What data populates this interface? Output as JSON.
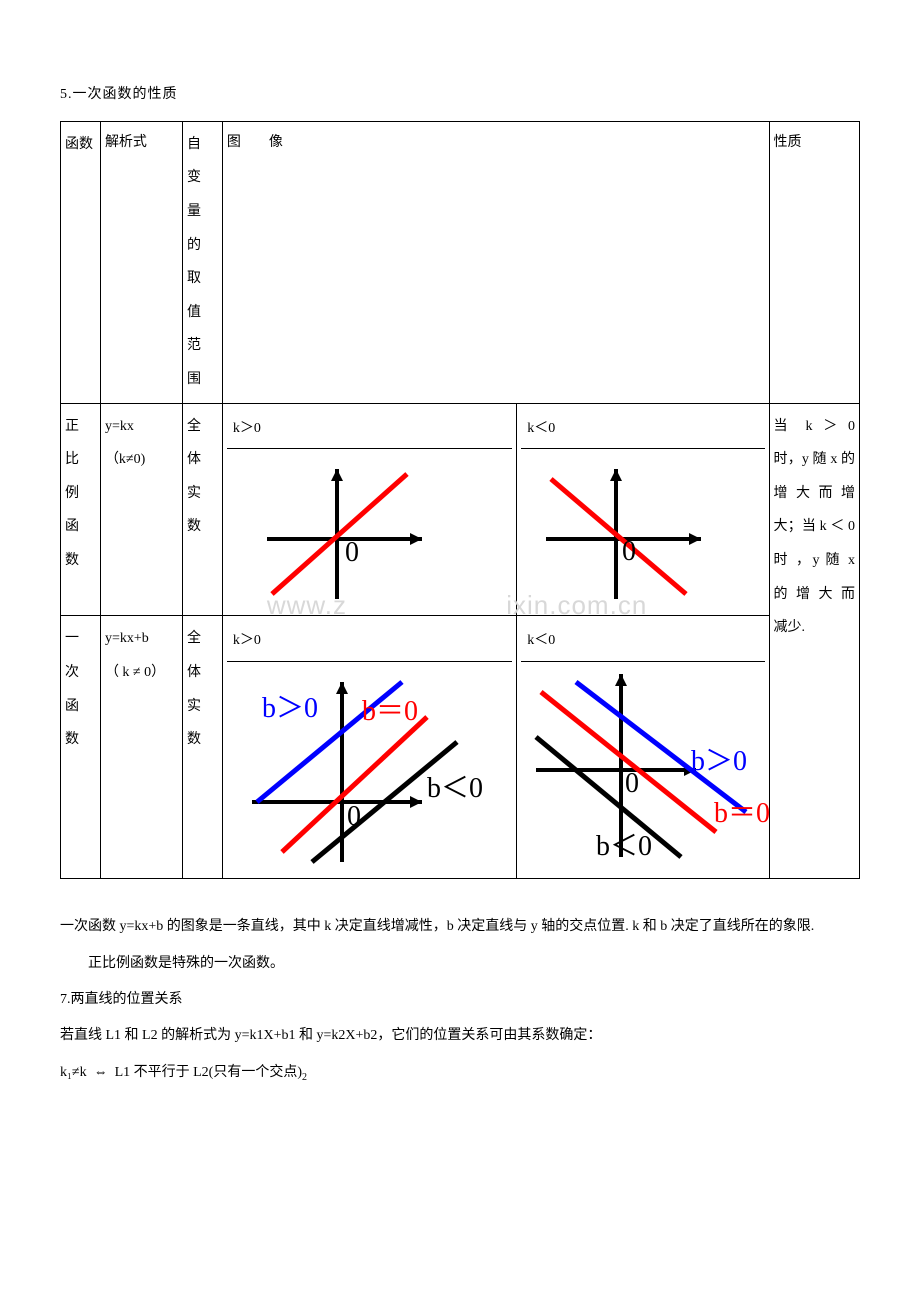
{
  "section_title": "5.一次函数的性质",
  "table": {
    "headers": {
      "fn": "函数",
      "expr": "解析式",
      "domain": "自变量的取值范围",
      "img": "图　　像",
      "prop": "性质"
    },
    "row1": {
      "fn": "正比例函数",
      "expr": "y=kx\n（k≠0)",
      "domain": "全体实数",
      "img_k_pos": "k＞0",
      "img_k_neg": "k＜0"
    },
    "row2": {
      "fn": "一次函数",
      "expr": "y=kx+b\n（ k ≠ 0）",
      "domain": "全体实数",
      "img_k_pos": "k＞0",
      "img_k_neg": "k＜0"
    },
    "prop_text": "当 k ＞ 0 时，y 随 x 的增大而增大；当 k ＜ 0 时 ，y 随 x 的增大而　减少."
  },
  "graphs": {
    "axes_color": "#000000",
    "line_red": "#ff0000",
    "line_blue": "#0000ff",
    "line_black": "#000000",
    "origin_label": "0",
    "labels": {
      "b_gt_0": "b＞0",
      "b_eq_0": "b＝0",
      "b_lt_0": "b＜0"
    }
  },
  "watermark": {
    "part1": "www.z",
    "part2": "ixin.com.cn"
  },
  "body": {
    "p1": "一次函数 y=kx+b 的图象是一条直线，其中 k 决定直线增减性，b 决定直线与 y 轴的交点位置. k 和 b 决定了直线所在的象限.",
    "p2": "正比例函数是特殊的一次函数。",
    "p3": "7.两直线的位置关系",
    "p4": "若直线 L1 和 L2 的解析式为 y=k1X+b1 和 y=k2X+b2，它们的位置关系可由其系数确定：",
    "p5_left": "k₁≠k",
    "p5_mid": "⇔",
    "p5_right": "L1 不平行于 L2(只有一个交点)",
    "p5_sub": "2"
  }
}
